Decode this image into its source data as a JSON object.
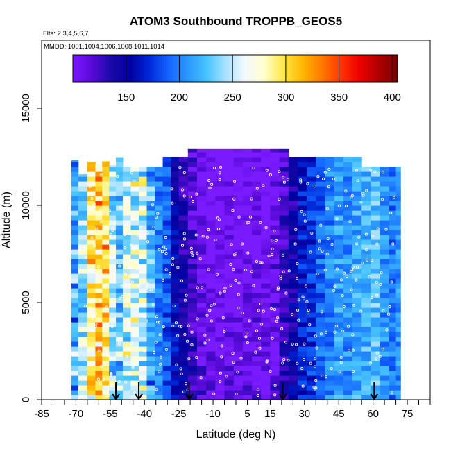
{
  "chart_data": {
    "type": "heatmap",
    "title": "ATOM3 Southbound TROPPB_GEOS5",
    "flights_note": "Flts: 2,3,4,5,6,7",
    "dates_note": "MMDD: 1001,1004,1006,1008,1011,1014",
    "xlabel": "Latitude (deg N)",
    "ylabel": "Altitude (m)",
    "xlim": [
      -85,
      85
    ],
    "ylim": [
      0,
      18500
    ],
    "x_ticks_labeled": [
      -85,
      -70,
      -55,
      -40,
      -25,
      -10,
      5,
      15,
      30,
      45,
      60,
      75
    ],
    "x_tick_labels": [
      "-85",
      "-70",
      "-55",
      "-40",
      "-25",
      "-10",
      "5",
      "15",
      "30",
      "45",
      "60",
      "75"
    ],
    "x_minor_ticks": [
      -80,
      -75,
      -65,
      -60,
      -50,
      -45,
      -35,
      -30,
      -20,
      -15,
      -5,
      0,
      10,
      20,
      25,
      35,
      40,
      50,
      55,
      65,
      70,
      80,
      85
    ],
    "y_ticks": [
      0,
      5000,
      10000,
      15000
    ],
    "y_tick_labels": [
      "0",
      "5000",
      "10000",
      "15000"
    ],
    "colorbar": {
      "range": [
        100,
        405
      ],
      "ticks": [
        150,
        200,
        250,
        300,
        350,
        400
      ],
      "tick_labels": [
        "150",
        "200",
        "250",
        "300",
        "350",
        "400"
      ],
      "colors": [
        "#7a1aff",
        "#5a0ad8",
        "#1a0aa8",
        "#0000a0",
        "#0028d8",
        "#1464ff",
        "#2a96ff",
        "#46c3ff",
        "#a8e2ff",
        "#f4f8ff",
        "#ffffd0",
        "#ffe84a",
        "#ffb800",
        "#ff7c00",
        "#ff3800",
        "#ee0000",
        "#b00000",
        "#7a0000"
      ]
    },
    "profile_columns": [
      {
        "lat": -71,
        "value": 215
      },
      {
        "lat": -67,
        "value": 240
      },
      {
        "lat": -63,
        "value": 290
      },
      {
        "lat": -60,
        "value": 305
      },
      {
        "lat": -57,
        "value": 300
      },
      {
        "lat": -54,
        "value": 245
      },
      {
        "lat": -51,
        "value": 235
      },
      {
        "lat": -48,
        "value": 255
      },
      {
        "lat": -44,
        "value": 265
      },
      {
        "lat": -41,
        "value": 260
      },
      {
        "lat": -37,
        "value": 215
      },
      {
        "lat": -34,
        "value": 200
      },
      {
        "lat": -30,
        "value": 185
      },
      {
        "lat": -27,
        "value": 160
      },
      {
        "lat": -23,
        "value": 145
      },
      {
        "lat": -19,
        "value": 130
      },
      {
        "lat": -15,
        "value": 115
      },
      {
        "lat": -11,
        "value": 110
      },
      {
        "lat": -7,
        "value": 110
      },
      {
        "lat": -3,
        "value": 112
      },
      {
        "lat": 1,
        "value": 108
      },
      {
        "lat": 5,
        "value": 112
      },
      {
        "lat": 9,
        "value": 115
      },
      {
        "lat": 13,
        "value": 110
      },
      {
        "lat": 17,
        "value": 118
      },
      {
        "lat": 21,
        "value": 135
      },
      {
        "lat": 25,
        "value": 150
      },
      {
        "lat": 29,
        "value": 165
      },
      {
        "lat": 33,
        "value": 175
      },
      {
        "lat": 37,
        "value": 190
      },
      {
        "lat": 41,
        "value": 200
      },
      {
        "lat": 45,
        "value": 210
      },
      {
        "lat": 49,
        "value": 205
      },
      {
        "lat": 53,
        "value": 215
      },
      {
        "lat": 57,
        "value": 220
      },
      {
        "lat": 61,
        "value": 225
      },
      {
        "lat": 65,
        "value": 205
      },
      {
        "lat": 69,
        "value": 195
      },
      {
        "lat": 71,
        "value": 205
      }
    ],
    "arrow_markers_lat": [
      -52.5,
      -42.5,
      -20.5,
      20.5,
      60.5
    ]
  }
}
